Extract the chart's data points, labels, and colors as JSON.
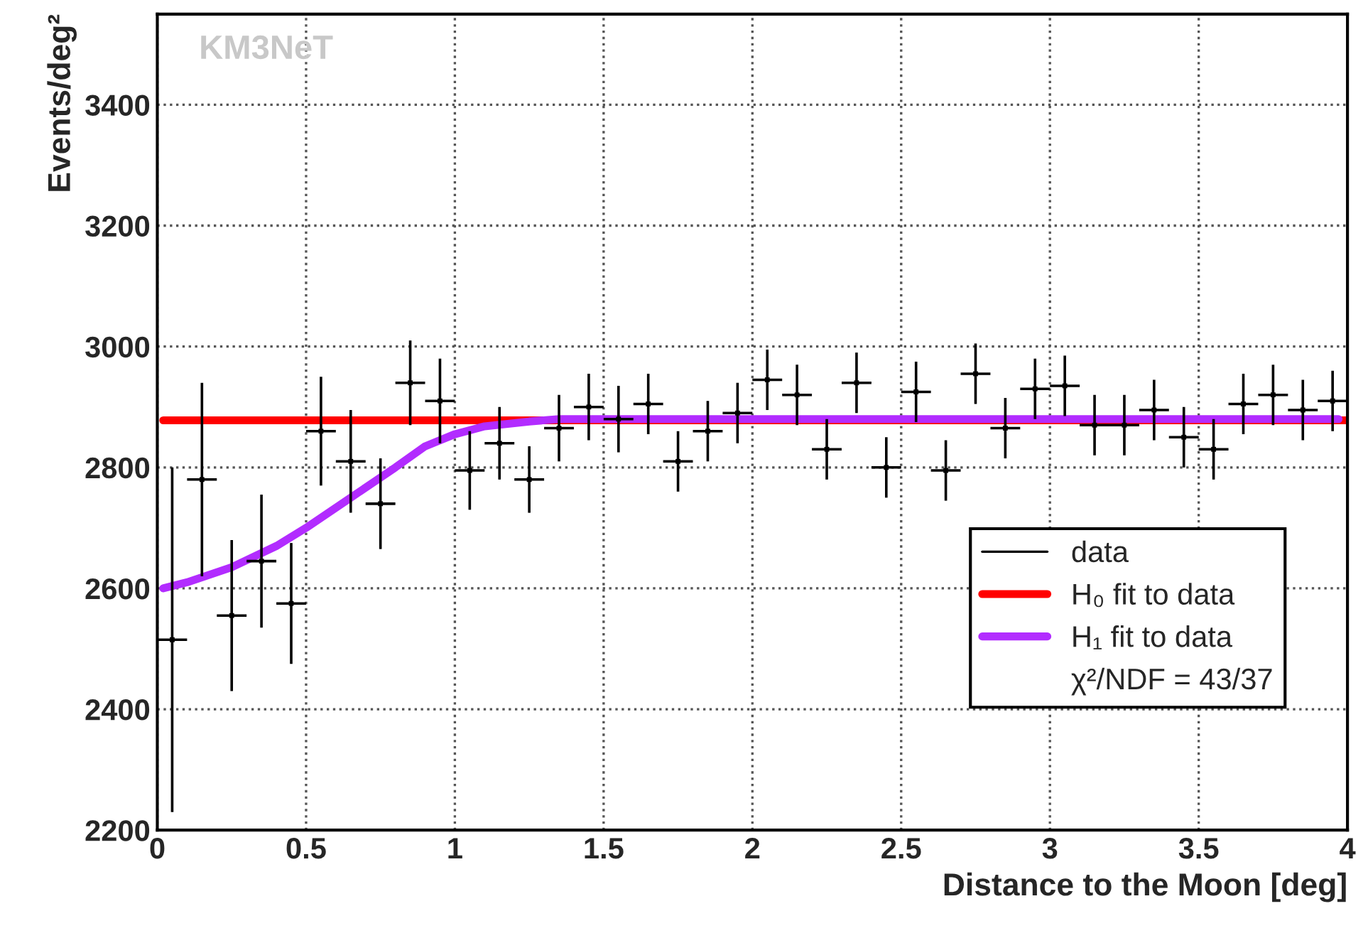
{
  "chart_data": {
    "type": "scatter",
    "xlabel": "Distance to the Moon [deg]",
    "ylabel": "Events/deg²",
    "xlim": [
      0,
      4
    ],
    "ylim": [
      2200,
      3550
    ],
    "xticks": [
      0,
      0.5,
      1,
      1.5,
      2,
      2.5,
      3,
      3.5,
      4
    ],
    "yticks": [
      2200,
      2400,
      2600,
      2800,
      3000,
      3200,
      3400
    ],
    "grid": true,
    "legend": "right",
    "annotations": [
      "KM3NeT",
      "χ²/NDF = 43/37"
    ],
    "series": [
      {
        "name": "data",
        "color": "#000000",
        "x": [
          0.05,
          0.15,
          0.25,
          0.35,
          0.45,
          0.55,
          0.65,
          0.75,
          0.85,
          0.95,
          1.05,
          1.15,
          1.25,
          1.35,
          1.45,
          1.55,
          1.65,
          1.75,
          1.85,
          1.95,
          2.05,
          2.15,
          2.25,
          2.35,
          2.45,
          2.55,
          2.65,
          2.75,
          2.85,
          2.95,
          3.05,
          3.15,
          3.25,
          3.35,
          3.45,
          3.55,
          3.65,
          3.75,
          3.85,
          3.95
        ],
        "values": [
          2515,
          2780,
          2555,
          2645,
          2575,
          2860,
          2810,
          2740,
          2940,
          2910,
          2795,
          2840,
          2780,
          2865,
          2900,
          2880,
          2905,
          2810,
          2860,
          2890,
          2945,
          2920,
          2830,
          2940,
          2800,
          2925,
          2795,
          2955,
          2865,
          2930,
          2935,
          2870,
          2870,
          2895,
          2850,
          2830,
          2905,
          2920,
          2895,
          2910
        ],
        "errors": [
          285,
          160,
          125,
          110,
          100,
          90,
          85,
          75,
          70,
          70,
          65,
          60,
          55,
          55,
          55,
          55,
          50,
          50,
          50,
          50,
          50,
          50,
          50,
          50,
          50,
          50,
          50,
          50,
          50,
          50,
          50,
          50,
          50,
          50,
          50,
          50,
          50,
          50,
          50,
          50
        ],
        "xerrors": [
          0.05,
          0.05,
          0.05,
          0.05,
          0.05,
          0.05,
          0.05,
          0.05,
          0.05,
          0.05,
          0.05,
          0.05,
          0.05,
          0.05,
          0.05,
          0.05,
          0.05,
          0.05,
          0.05,
          0.05,
          0.05,
          0.05,
          0.05,
          0.05,
          0.05,
          0.05,
          0.05,
          0.05,
          0.05,
          0.05,
          0.05,
          0.05,
          0.05,
          0.05,
          0.05,
          0.05,
          0.05,
          0.05,
          0.05,
          0.05
        ]
      },
      {
        "name": "H₀ fit to data",
        "type": "line",
        "color": "#ff0000",
        "x": [
          0.02,
          4
        ],
        "values": [
          2878,
          2878
        ]
      },
      {
        "name": "H₁ fit to data",
        "type": "line",
        "color": "#b22cff",
        "x": [
          0.02,
          0.1,
          0.25,
          0.4,
          0.5,
          0.65,
          0.8,
          0.9,
          1.0,
          1.1,
          1.25,
          1.35,
          2,
          3,
          3.97
        ],
        "values": [
          2600,
          2610,
          2635,
          2670,
          2700,
          2750,
          2800,
          2835,
          2855,
          2868,
          2876,
          2880,
          2880,
          2880,
          2880
        ]
      }
    ]
  }
}
